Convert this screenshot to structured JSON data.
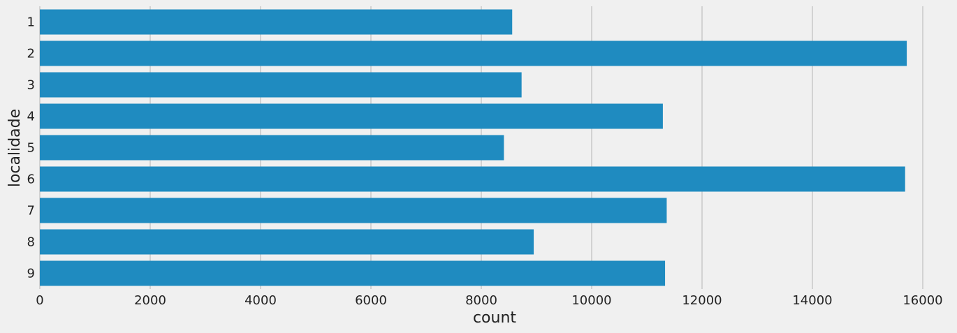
{
  "chart_data": {
    "type": "bar",
    "orientation": "horizontal",
    "categories": [
      "1",
      "2",
      "3",
      "4",
      "5",
      "6",
      "7",
      "8",
      "9"
    ],
    "values": [
      8560,
      15710,
      8730,
      11290,
      8410,
      15680,
      11360,
      8950,
      11330
    ],
    "xlabel": "count",
    "ylabel": "localidade",
    "xlim": [
      0,
      16500
    ],
    "xticks": [
      0,
      2000,
      4000,
      6000,
      8000,
      10000,
      12000,
      14000,
      16000
    ],
    "grid": "vertical",
    "bar_color": "#1f8bc0",
    "background_color": "#f0f0f0",
    "grid_color": "#cbcbcb"
  }
}
